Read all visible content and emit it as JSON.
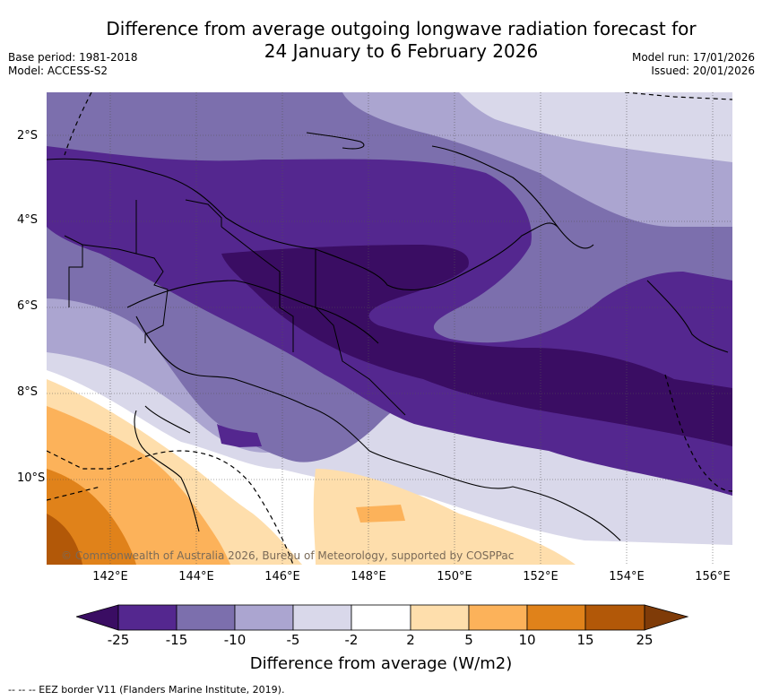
{
  "title": {
    "line1": "Difference from average outgoing longwave radiation forecast for",
    "line2": "24 January to 6 February 2026"
  },
  "meta_left": {
    "base_period": "Base period: 1981-2018",
    "model": "Model: ACCESS-S2"
  },
  "meta_right": {
    "model_run": "Model run: 17/01/2026",
    "issued": "Issued: 20/01/2026"
  },
  "map": {
    "lat_labels": [
      "2°S",
      "4°S",
      "6°S",
      "8°S",
      "10°S"
    ],
    "lon_labels": [
      "142°E",
      "144°E",
      "146°E",
      "148°E",
      "150°E",
      "152°E",
      "154°E",
      "156°E"
    ],
    "copyright": "© Commonwealth of Australia 2026, Bureau of Meteorology, supported by COSPPac"
  },
  "colorbar": {
    "ticks": [
      "-25",
      "-15",
      "-10",
      "-5",
      "-2",
      "2",
      "5",
      "10",
      "15",
      "25"
    ],
    "colors": [
      "#3a0d63",
      "#54278f",
      "#7c6fad",
      "#aba5d0",
      "#d9d8ea",
      "#ffffff",
      "#fedeac",
      "#fcb25a",
      "#e0821a",
      "#b25808",
      "#7f3b08"
    ],
    "label": "Difference from average (W/m2)"
  },
  "footnote": "--  --  -- EEZ border V11 (Flanders Marine Institute, 2019)."
}
